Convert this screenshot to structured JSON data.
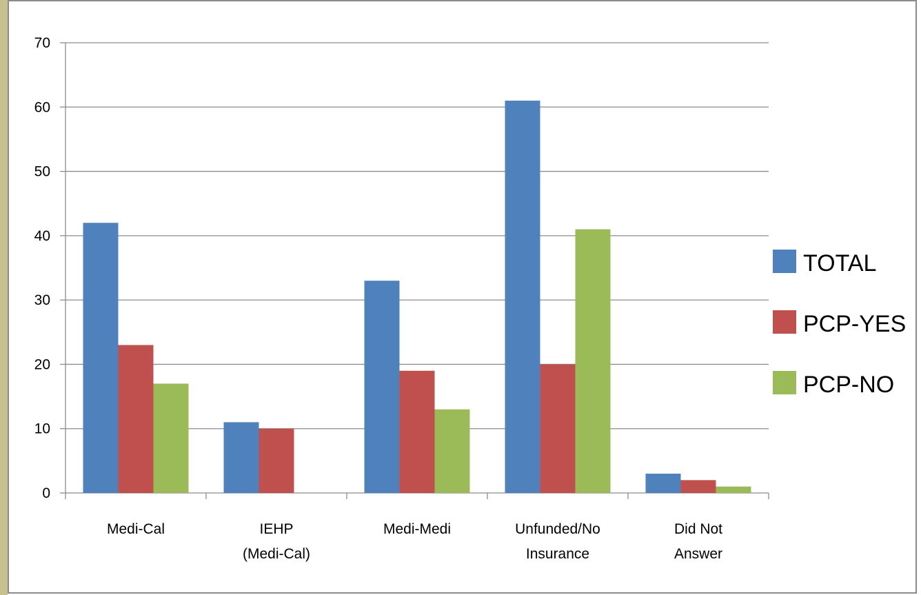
{
  "chart_data": {
    "type": "bar",
    "title": "",
    "xlabel": "",
    "ylabel": "",
    "ylim": [
      0,
      70
    ],
    "yticks": [
      0,
      10,
      20,
      30,
      40,
      50,
      60,
      70
    ],
    "categories": [
      [
        "Medi-Cal"
      ],
      [
        "IEHP",
        "(Medi-Cal)"
      ],
      [
        "Medi-Medi"
      ],
      [
        "Unfunded/No",
        "Insurance"
      ],
      [
        "Did Not",
        "Answer"
      ]
    ],
    "series": [
      {
        "name": "TOTAL",
        "color": "#4f81bd",
        "values": [
          42,
          11,
          33,
          61,
          3
        ]
      },
      {
        "name": "PCP-YES",
        "color": "#c0504d",
        "values": [
          23,
          10,
          19,
          20,
          2
        ]
      },
      {
        "name": "PCP-NO",
        "color": "#9bbb59",
        "values": [
          17,
          0,
          13,
          41,
          1
        ]
      }
    ],
    "grid": true,
    "legend": "right"
  }
}
